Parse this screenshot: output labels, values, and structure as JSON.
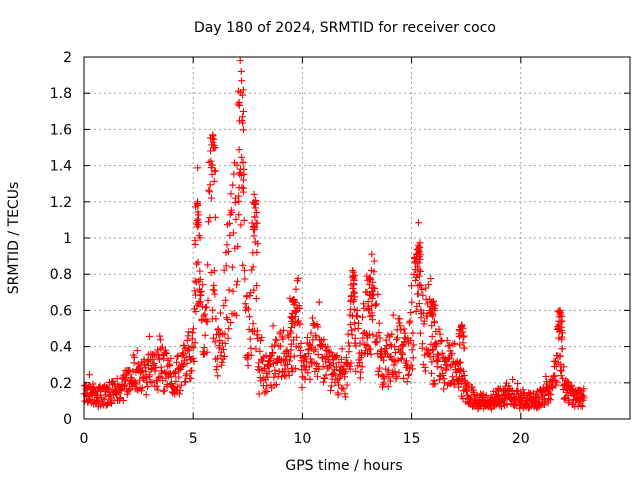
{
  "chart_data": {
    "type": "scatter",
    "title": "Day 180 of 2024, SRMTID for receiver coco",
    "xlabel": "GPS time / hours",
    "ylabel": "SRMTID / TECUs",
    "xlim": [
      0,
      25
    ],
    "ylim": [
      0,
      2
    ],
    "grid": true,
    "marker": "+",
    "colors": {
      "series": "#ff0000",
      "grid": "#a0a0a0",
      "axis": "#000000"
    },
    "x_ticks": [
      "0",
      "5",
      "10",
      "15",
      "20"
    ],
    "x_tick_values": [
      0,
      5,
      10,
      15,
      20
    ],
    "y_ticks": [
      "0",
      "0.2",
      "0.4",
      "0.6",
      "0.8",
      "1",
      "1.2",
      "1.4",
      "1.6",
      "1.8",
      "2"
    ],
    "y_tick_values": [
      0,
      0.2,
      0.4,
      0.6,
      0.8,
      1,
      1.2,
      1.4,
      1.6,
      1.8,
      2
    ],
    "profile_hours": [
      0,
      0.5,
      1,
      1.5,
      2,
      2.3,
      2.6,
      3,
      3.5,
      4,
      4.5,
      4.8,
      5,
      5.2,
      5.4,
      5.6,
      5.8,
      6,
      6.2,
      6.4,
      6.7,
      7,
      7.2,
      7.4,
      7.6,
      7.8,
      8,
      8.5,
      9,
      9.5,
      9.8,
      10,
      10.5,
      11,
      11.5,
      12,
      12.3,
      12.6,
      13,
      13.3,
      13.6,
      14,
      14.5,
      14.8,
      15,
      15.3,
      15.6,
      15.8,
      16,
      16.5,
      17,
      17.5,
      18,
      18.5,
      19,
      19.5,
      20,
      20.5,
      21,
      21.5,
      21.8,
      22,
      22.5,
      22.8
    ],
    "profile_values": [
      0.14,
      0.12,
      0.13,
      0.16,
      0.2,
      0.3,
      0.22,
      0.25,
      0.28,
      0.25,
      0.25,
      0.4,
      0.38,
      1.0,
      0.6,
      0.4,
      1.3,
      0.5,
      0.3,
      0.55,
      0.9,
      1.05,
      1.7,
      0.5,
      0.5,
      0.9,
      0.25,
      0.27,
      0.35,
      0.4,
      0.55,
      0.25,
      0.42,
      0.3,
      0.25,
      0.22,
      0.55,
      0.38,
      0.62,
      0.68,
      0.3,
      0.33,
      0.4,
      0.3,
      0.45,
      0.8,
      0.45,
      0.55,
      0.3,
      0.3,
      0.3,
      0.15,
      0.1,
      0.09,
      0.12,
      0.13,
      0.1,
      0.1,
      0.12,
      0.2,
      0.45,
      0.16,
      0.12,
      0.12
    ],
    "peaks": [
      {
        "x": 5.2,
        "y": 1.2
      },
      {
        "x": 5.9,
        "y": 1.57
      },
      {
        "x": 7.2,
        "y": 1.92
      },
      {
        "x": 7.85,
        "y": 1.2
      },
      {
        "x": 9.6,
        "y": 0.66
      },
      {
        "x": 12.3,
        "y": 0.82
      },
      {
        "x": 13.1,
        "y": 0.78
      },
      {
        "x": 15.3,
        "y": 0.96
      },
      {
        "x": 16.0,
        "y": 0.65
      },
      {
        "x": 17.3,
        "y": 0.52
      },
      {
        "x": 21.8,
        "y": 0.6
      }
    ],
    "sample_count": 1400,
    "x_max_data": 22.9
  }
}
